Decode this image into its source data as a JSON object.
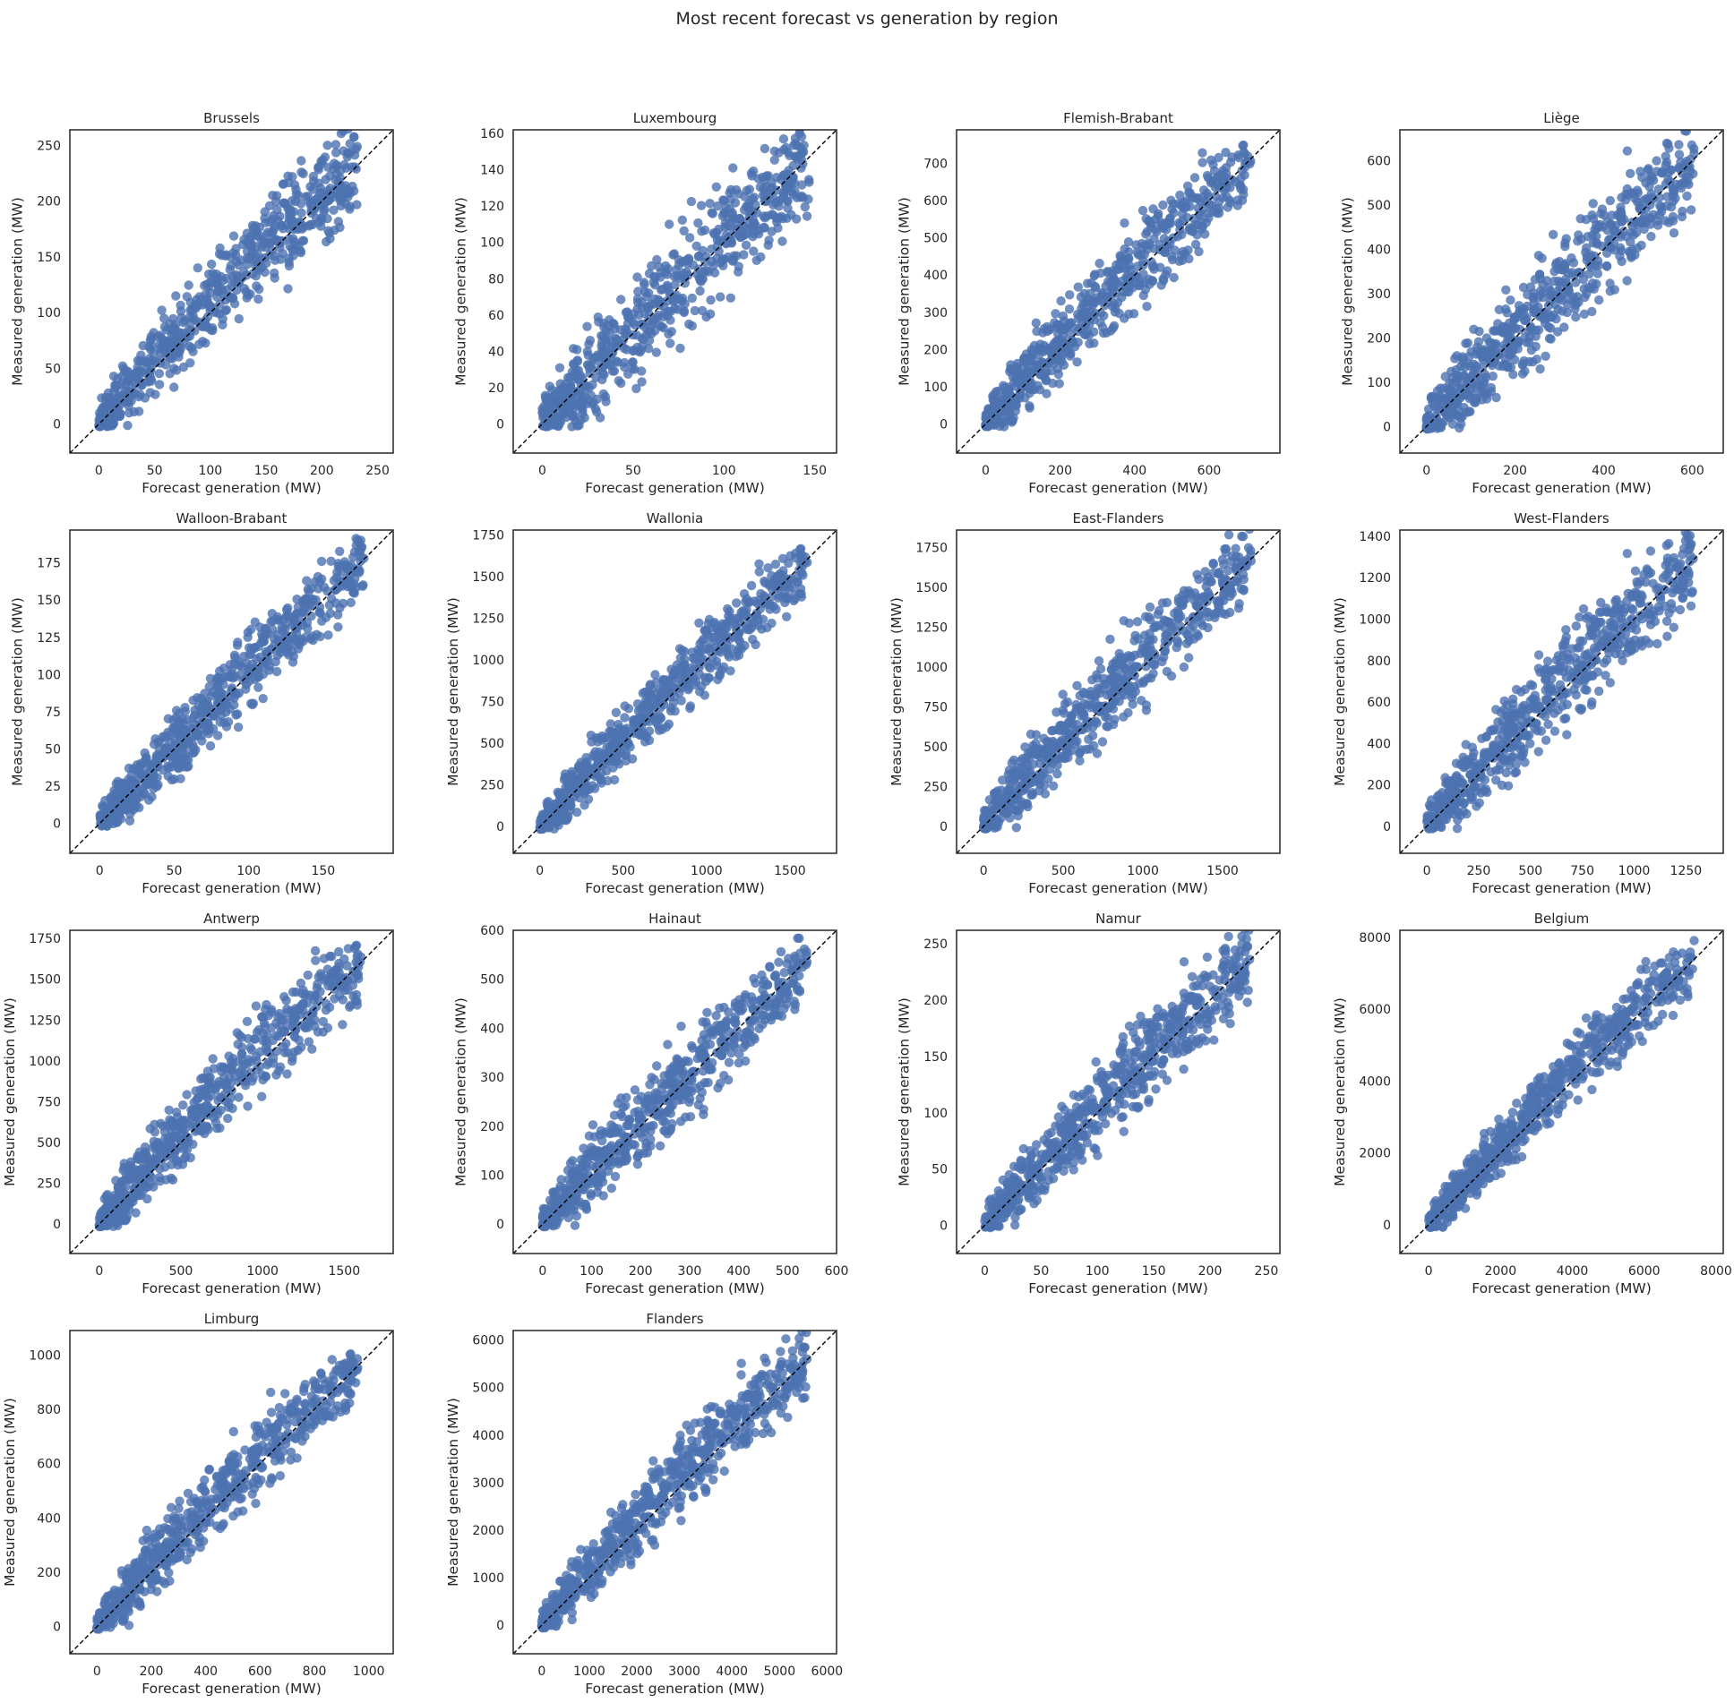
{
  "figure": {
    "title": "Most recent forecast vs generation by region",
    "point_color": "#4c72b0",
    "reference_line_color": "#000000",
    "reference_line_style": "dashed"
  },
  "chart_data": [
    {
      "type": "scatter",
      "title": "Brussels",
      "xlabel": "Forecast generation (MW)",
      "ylabel": "Measured generation (MW)",
      "xlim": [
        -26,
        264
      ],
      "ylim": [
        -26,
        264
      ],
      "xticks": [
        0,
        50,
        100,
        150,
        200,
        250
      ],
      "yticks": [
        0,
        50,
        100,
        150,
        200,
        250
      ],
      "point_max": 232,
      "spread": 0.11,
      "bias": 0.05,
      "reference_line": [
        [
          -26,
          -26
        ],
        [
          264,
          264
        ]
      ]
    },
    {
      "type": "scatter",
      "title": "Luxembourg",
      "xlabel": "Forecast generation (MW)",
      "ylabel": "Measured generation (MW)",
      "xlim": [
        -16,
        162
      ],
      "ylim": [
        -16,
        162
      ],
      "xticks": [
        0,
        50,
        100,
        150
      ],
      "yticks": [
        0,
        20,
        40,
        60,
        80,
        100,
        120,
        140,
        160
      ],
      "point_max": 147,
      "spread": 0.13,
      "bias": 0.02,
      "reference_line": [
        [
          -16,
          -16
        ],
        [
          162,
          162
        ]
      ]
    },
    {
      "type": "scatter",
      "title": "Flemish-Brabant",
      "xlabel": "Forecast generation (MW)",
      "ylabel": "Measured generation (MW)",
      "xlim": [
        -78,
        790
      ],
      "ylim": [
        -78,
        790
      ],
      "xticks": [
        0,
        200,
        400,
        600
      ],
      "yticks": [
        0,
        100,
        200,
        300,
        400,
        500,
        600,
        700
      ],
      "point_max": 712,
      "spread": 0.1,
      "bias": 0.03,
      "reference_line": [
        [
          -78,
          -78
        ],
        [
          790,
          790
        ]
      ]
    },
    {
      "type": "scatter",
      "title": "Liège",
      "xlabel": "Forecast generation (MW)",
      "ylabel": "Measured generation (MW)",
      "xlim": [
        -60,
        670
      ],
      "ylim": [
        -60,
        670
      ],
      "xticks": [
        0,
        200,
        400,
        600
      ],
      "yticks": [
        0,
        100,
        200,
        300,
        400,
        500,
        600
      ],
      "point_max": 605,
      "spread": 0.12,
      "bias": 0.02,
      "reference_line": [
        [
          -60,
          -60
        ],
        [
          670,
          670
        ]
      ]
    },
    {
      "type": "scatter",
      "title": "Walloon-Brabant",
      "xlabel": "Forecast generation (MW)",
      "ylabel": "Measured generation (MW)",
      "xlim": [
        -20,
        197
      ],
      "ylim": [
        -20,
        197
      ],
      "xticks": [
        0,
        50,
        100,
        150
      ],
      "yticks": [
        0,
        25,
        50,
        75,
        100,
        125,
        150,
        175
      ],
      "point_max": 178,
      "spread": 0.09,
      "bias": 0.02,
      "reference_line": [
        [
          -20,
          -20
        ],
        [
          197,
          197
        ]
      ]
    },
    {
      "type": "scatter",
      "title": "Wallonia",
      "xlabel": "Forecast generation (MW)",
      "ylabel": "Measured generation (MW)",
      "xlim": [
        -160,
        1780
      ],
      "ylim": [
        -160,
        1780
      ],
      "xticks": [
        0,
        500,
        1000,
        1500
      ],
      "yticks": [
        0,
        250,
        500,
        750,
        1000,
        1250,
        1500,
        1750
      ],
      "point_max": 1610,
      "spread": 0.08,
      "bias": 0.02,
      "reference_line": [
        [
          -160,
          -160
        ],
        [
          1780,
          1780
        ]
      ]
    },
    {
      "type": "scatter",
      "title": "East-Flanders",
      "xlabel": "Forecast generation (MW)",
      "ylabel": "Measured generation (MW)",
      "xlim": [
        -170,
        1860
      ],
      "ylim": [
        -170,
        1860
      ],
      "xticks": [
        0,
        500,
        1000,
        1500
      ],
      "yticks": [
        0,
        250,
        500,
        750,
        1000,
        1250,
        1500,
        1750
      ],
      "point_max": 1680,
      "spread": 0.1,
      "bias": 0.04,
      "reference_line": [
        [
          -170,
          -170
        ],
        [
          1860,
          1860
        ]
      ]
    },
    {
      "type": "scatter",
      "title": "West-Flanders",
      "xlabel": "Forecast generation (MW)",
      "ylabel": "Measured generation (MW)",
      "xlim": [
        -130,
        1430
      ],
      "ylim": [
        -130,
        1430
      ],
      "xticks": [
        0,
        250,
        500,
        750,
        1000,
        1250
      ],
      "yticks": [
        0,
        200,
        400,
        600,
        800,
        1000,
        1200,
        1400
      ],
      "point_max": 1290,
      "spread": 0.11,
      "bias": 0.04,
      "reference_line": [
        [
          -130,
          -130
        ],
        [
          1430,
          1430
        ]
      ]
    },
    {
      "type": "scatter",
      "title": "Antwerp",
      "xlabel": "Forecast generation (MW)",
      "ylabel": "Measured generation (MW)",
      "xlim": [
        -180,
        1800
      ],
      "ylim": [
        -180,
        1800
      ],
      "xticks": [
        0,
        500,
        1000,
        1500
      ],
      "yticks": [
        0,
        250,
        500,
        750,
        1000,
        1250,
        1500,
        1750
      ],
      "point_max": 1620,
      "spread": 0.1,
      "bias": 0.05,
      "reference_line": [
        [
          -180,
          -180
        ],
        [
          1800,
          1800
        ]
      ]
    },
    {
      "type": "scatter",
      "title": "Hainaut",
      "xlabel": "Forecast generation (MW)",
      "ylabel": "Measured generation (MW)",
      "xlim": [
        -60,
        600
      ],
      "ylim": [
        -60,
        600
      ],
      "xticks": [
        0,
        100,
        200,
        300,
        400,
        500,
        600
      ],
      "yticks": [
        0,
        100,
        200,
        300,
        400,
        500,
        600
      ],
      "point_max": 540,
      "spread": 0.1,
      "bias": 0.02,
      "reference_line": [
        [
          -60,
          -60
        ],
        [
          600,
          600
        ]
      ]
    },
    {
      "type": "scatter",
      "title": "Namur",
      "xlabel": "Forecast generation (MW)",
      "ylabel": "Measured generation (MW)",
      "xlim": [
        -25,
        262
      ],
      "ylim": [
        -25,
        262
      ],
      "xticks": [
        0,
        50,
        100,
        150,
        200,
        250
      ],
      "yticks": [
        0,
        50,
        100,
        150,
        200,
        250
      ],
      "point_max": 236,
      "spread": 0.1,
      "bias": 0.03,
      "reference_line": [
        [
          -25,
          -25
        ],
        [
          262,
          262
        ]
      ]
    },
    {
      "type": "scatter",
      "title": "Belgium",
      "xlabel": "Forecast generation (MW)",
      "ylabel": "Measured generation (MW)",
      "xlim": [
        -800,
        8200
      ],
      "ylim": [
        -800,
        8200
      ],
      "xticks": [
        0,
        2000,
        4000,
        6000,
        8000
      ],
      "yticks": [
        0,
        2000,
        4000,
        6000,
        8000
      ],
      "point_max": 7400,
      "spread": 0.08,
      "bias": 0.04,
      "reference_line": [
        [
          -800,
          -800
        ],
        [
          8200,
          8200
        ]
      ]
    },
    {
      "type": "scatter",
      "title": "Limburg",
      "xlabel": "Forecast generation (MW)",
      "ylabel": "Measured generation (MW)",
      "xlim": [
        -100,
        1090
      ],
      "ylim": [
        -100,
        1090
      ],
      "xticks": [
        0,
        200,
        400,
        600,
        800,
        1000
      ],
      "yticks": [
        0,
        200,
        400,
        600,
        800,
        1000
      ],
      "point_max": 960,
      "spread": 0.09,
      "bias": 0.04,
      "reference_line": [
        [
          -100,
          -100
        ],
        [
          1090,
          1090
        ]
      ]
    },
    {
      "type": "scatter",
      "title": "Flanders",
      "xlabel": "Forecast generation (MW)",
      "ylabel": "Measured generation (MW)",
      "xlim": [
        -600,
        6200
      ],
      "ylim": [
        -600,
        6200
      ],
      "xticks": [
        0,
        1000,
        2000,
        3000,
        4000,
        5000,
        6000
      ],
      "yticks": [
        0,
        1000,
        2000,
        3000,
        4000,
        5000,
        6000
      ],
      "point_max": 5600,
      "spread": 0.09,
      "bias": 0.05,
      "reference_line": [
        [
          -600,
          -600
        ],
        [
          6200,
          6200
        ]
      ]
    }
  ]
}
